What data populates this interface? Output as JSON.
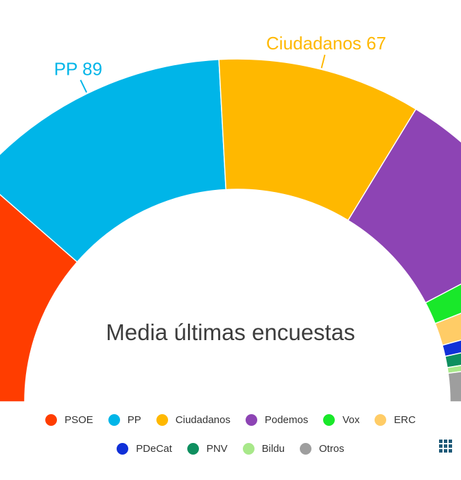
{
  "chart_data": {
    "type": "pie",
    "title": "Media últimas encuestas",
    "total_seats": 350,
    "slices": [
      {
        "name": "PSOE",
        "value": 80,
        "color": "#ff3d00"
      },
      {
        "name": "PP",
        "value": 89,
        "color": "#00b5e8"
      },
      {
        "name": "Ciudadanos",
        "value": 67,
        "color": "#ffb800"
      },
      {
        "name": "Podemos",
        "value": 60,
        "color": "#8d44b4"
      },
      {
        "name": "Vox",
        "value": 12,
        "color": "#19e82a"
      },
      {
        "name": "ERC",
        "value": 12,
        "color": "#ffcc66"
      },
      {
        "name": "PDeCat",
        "value": 6,
        "color": "#1030d8"
      },
      {
        "name": "PNV",
        "value": 6,
        "color": "#0e8f5f"
      },
      {
        "name": "Bildu",
        "value": 3,
        "color": "#a8e88a"
      },
      {
        "name": "Otros",
        "value": 15,
        "color": "#9e9e9e"
      }
    ],
    "annotations": [
      {
        "party": "PP",
        "text": "PP 89",
        "color": "#00b5e8"
      },
      {
        "party": "Ciudadanos",
        "text": "Ciudadanos 67",
        "color": "#ffb800"
      },
      {
        "party": "Podemos",
        "text": "Podemos",
        "color": "#8d44b4"
      },
      {
        "party": "Vox",
        "text": "Vox",
        "color": "#19e82a"
      }
    ]
  }
}
